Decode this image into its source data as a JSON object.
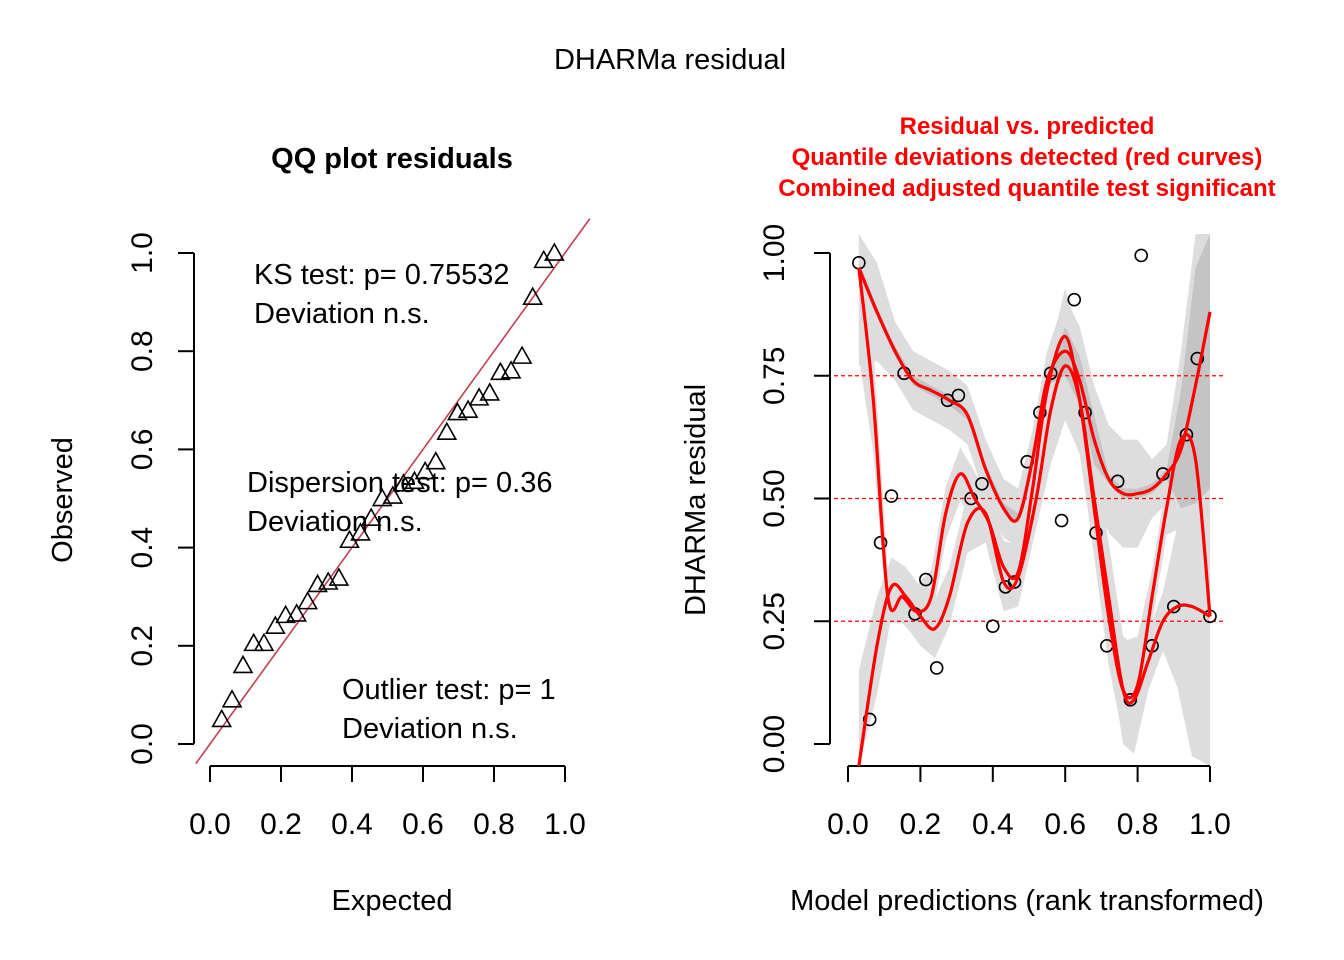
{
  "figure": {
    "title": "DHARMa residual"
  },
  "colors": {
    "qq_line": "#c04050",
    "red": "#ff0000",
    "band_light": "#dddddd",
    "band_mid": "#c4c4c4",
    "band_dark": "#9e9e9e"
  },
  "chart_data": [
    {
      "type": "scatter",
      "title": "QQ plot residuals",
      "xlabel": "Expected",
      "ylabel": "Observed",
      "xlim": [
        0,
        1
      ],
      "ylim": [
        0,
        1
      ],
      "xticks": [
        "0.0",
        "0.2",
        "0.4",
        "0.6",
        "0.8",
        "1.0"
      ],
      "yticks": [
        "0.0",
        "0.2",
        "0.4",
        "0.6",
        "0.8",
        "1.0"
      ],
      "marker": "open-triangle",
      "reference_line": "y = x",
      "annotations": [
        "KS test: p= 0.75532",
        "Deviation  n.s.",
        "Dispersion test: p= 0.36",
        "Deviation  n.s.",
        "Outlier test: p= 1",
        "Deviation  n.s."
      ],
      "points": [
        [
          0.033,
          0.05
        ],
        [
          0.062,
          0.09
        ],
        [
          0.093,
          0.16
        ],
        [
          0.123,
          0.205
        ],
        [
          0.152,
          0.205
        ],
        [
          0.184,
          0.24
        ],
        [
          0.213,
          0.262
        ],
        [
          0.244,
          0.265
        ],
        [
          0.275,
          0.29
        ],
        [
          0.303,
          0.325
        ],
        [
          0.333,
          0.33
        ],
        [
          0.363,
          0.338
        ],
        [
          0.393,
          0.415
        ],
        [
          0.424,
          0.43
        ],
        [
          0.454,
          0.46
        ],
        [
          0.485,
          0.5
        ],
        [
          0.515,
          0.505
        ],
        [
          0.545,
          0.53
        ],
        [
          0.576,
          0.535
        ],
        [
          0.606,
          0.555
        ],
        [
          0.636,
          0.575
        ],
        [
          0.667,
          0.635
        ],
        [
          0.697,
          0.675
        ],
        [
          0.727,
          0.68
        ],
        [
          0.758,
          0.705
        ],
        [
          0.788,
          0.715
        ],
        [
          0.818,
          0.757
        ],
        [
          0.848,
          0.76
        ],
        [
          0.879,
          0.79
        ],
        [
          0.909,
          0.91
        ],
        [
          0.94,
          0.985
        ],
        [
          0.97,
          1.0
        ]
      ]
    },
    {
      "type": "scatter",
      "title_lines": [
        "Residual vs. predicted",
        "Quantile deviations detected (red curves)",
        "Combined adjusted quantile test significant"
      ],
      "xlabel": "Model predictions (rank transformed)",
      "ylabel": "DHARMa residual",
      "xlim": [
        0,
        1
      ],
      "ylim": [
        0,
        1
      ],
      "xticks": [
        "0.0",
        "0.2",
        "0.4",
        "0.6",
        "0.8",
        "1.0"
      ],
      "yticks": [
        "0.00",
        "0.25",
        "0.50",
        "0.75",
        "1.00"
      ],
      "hlines": [
        0.25,
        0.5,
        0.75
      ],
      "marker": "open-circle",
      "points": [
        [
          0.03,
          0.98
        ],
        [
          0.06,
          0.05
        ],
        [
          0.09,
          0.41
        ],
        [
          0.12,
          0.505
        ],
        [
          0.155,
          0.755
        ],
        [
          0.185,
          0.265
        ],
        [
          0.215,
          0.335
        ],
        [
          0.245,
          0.155
        ],
        [
          0.275,
          0.7
        ],
        [
          0.305,
          0.71
        ],
        [
          0.34,
          0.5
        ],
        [
          0.37,
          0.53
        ],
        [
          0.4,
          0.24
        ],
        [
          0.435,
          0.32
        ],
        [
          0.46,
          0.33
        ],
        [
          0.495,
          0.575
        ],
        [
          0.53,
          0.675
        ],
        [
          0.56,
          0.755
        ],
        [
          0.59,
          0.455
        ],
        [
          0.625,
          0.905
        ],
        [
          0.655,
          0.675
        ],
        [
          0.685,
          0.43
        ],
        [
          0.715,
          0.2
        ],
        [
          0.745,
          0.535
        ],
        [
          0.78,
          0.09
        ],
        [
          0.81,
          0.995
        ],
        [
          0.84,
          0.2
        ],
        [
          0.87,
          0.55
        ],
        [
          0.9,
          0.28
        ],
        [
          0.935,
          0.63
        ],
        [
          0.965,
          0.785
        ],
        [
          1.0,
          0.26
        ]
      ],
      "quantile_curves": [
        {
          "quantile": 0.25,
          "x": [
            0.03,
            0.08,
            0.12,
            0.16,
            0.2,
            0.24,
            0.28,
            0.33,
            0.38,
            0.43,
            0.47,
            0.52,
            0.56,
            0.6,
            0.64,
            0.68,
            0.72,
            0.76,
            0.79,
            0.83,
            0.87,
            0.91,
            0.95,
            1.0
          ],
          "y": [
            -0.05,
            0.2,
            0.32,
            0.3,
            0.26,
            0.235,
            0.3,
            0.45,
            0.47,
            0.33,
            0.34,
            0.5,
            0.68,
            0.77,
            0.7,
            0.5,
            0.3,
            0.11,
            0.09,
            0.17,
            0.25,
            0.28,
            0.28,
            0.26
          ]
        },
        {
          "quantile": 0.5,
          "x": [
            0.03,
            0.07,
            0.11,
            0.15,
            0.19,
            0.23,
            0.27,
            0.31,
            0.35,
            0.39,
            0.43,
            0.47,
            0.51,
            0.55,
            0.6,
            0.64,
            0.68,
            0.72,
            0.76,
            0.8,
            0.84,
            0.88,
            0.92,
            0.96,
            1.0
          ],
          "y": [
            0.97,
            0.7,
            0.3,
            0.3,
            0.27,
            0.3,
            0.47,
            0.55,
            0.5,
            0.45,
            0.36,
            0.35,
            0.52,
            0.72,
            0.83,
            0.7,
            0.48,
            0.26,
            0.11,
            0.12,
            0.3,
            0.48,
            0.62,
            0.58,
            0.26
          ]
        },
        {
          "quantile": 0.75,
          "x": [
            0.03,
            0.08,
            0.13,
            0.18,
            0.23,
            0.28,
            0.33,
            0.38,
            0.43,
            0.47,
            0.51,
            0.55,
            0.6,
            0.64,
            0.68,
            0.72,
            0.76,
            0.8,
            0.84,
            0.88,
            0.92,
            0.96,
            1.0
          ],
          "y": [
            0.97,
            0.88,
            0.8,
            0.74,
            0.72,
            0.7,
            0.67,
            0.56,
            0.48,
            0.46,
            0.58,
            0.74,
            0.8,
            0.74,
            0.62,
            0.54,
            0.51,
            0.51,
            0.52,
            0.55,
            0.6,
            0.73,
            0.88
          ]
        }
      ]
    }
  ]
}
